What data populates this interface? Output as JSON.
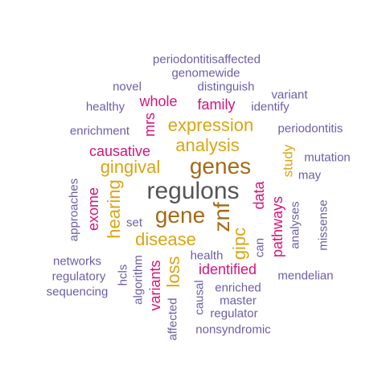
{
  "colors": {
    "purple": "#6b5fa6",
    "pink": "#d6157a",
    "gold": "#dba512",
    "brown": "#a56a16",
    "grey": "#555555"
  },
  "words": [
    {
      "text": "regulons",
      "color": "grey"
    },
    {
      "text": "genes",
      "color": "brown"
    },
    {
      "text": "gene",
      "color": "brown"
    },
    {
      "text": "znf",
      "color": "brown"
    },
    {
      "text": "expression",
      "color": "gold"
    },
    {
      "text": "analysis",
      "color": "gold"
    },
    {
      "text": "gingival",
      "color": "gold"
    },
    {
      "text": "disease",
      "color": "gold"
    },
    {
      "text": "hearing",
      "color": "gold"
    },
    {
      "text": "loss",
      "color": "gold"
    },
    {
      "text": "gipc",
      "color": "gold"
    },
    {
      "text": "study",
      "color": "gold"
    },
    {
      "text": "whole",
      "color": "pink"
    },
    {
      "text": "family",
      "color": "pink"
    },
    {
      "text": "mrs",
      "color": "pink"
    },
    {
      "text": "causative",
      "color": "pink"
    },
    {
      "text": "exome",
      "color": "pink"
    },
    {
      "text": "data",
      "color": "pink"
    },
    {
      "text": "pathways",
      "color": "pink"
    },
    {
      "text": "identified",
      "color": "pink"
    },
    {
      "text": "variants",
      "color": "pink"
    },
    {
      "text": "periodontitisaffected",
      "color": "purple"
    },
    {
      "text": "genomewide",
      "color": "purple"
    },
    {
      "text": "novel",
      "color": "purple"
    },
    {
      "text": "distinguish",
      "color": "purple"
    },
    {
      "text": "variant",
      "color": "purple"
    },
    {
      "text": "healthy",
      "color": "purple"
    },
    {
      "text": "identify",
      "color": "purple"
    },
    {
      "text": "enrichment",
      "color": "purple"
    },
    {
      "text": "periodontitis",
      "color": "purple"
    },
    {
      "text": "mutation",
      "color": "purple"
    },
    {
      "text": "may",
      "color": "purple"
    },
    {
      "text": "approaches",
      "color": "purple"
    },
    {
      "text": "set",
      "color": "purple"
    },
    {
      "text": "analyses",
      "color": "purple"
    },
    {
      "text": "missense",
      "color": "purple"
    },
    {
      "text": "networks",
      "color": "purple"
    },
    {
      "text": "hcls",
      "color": "purple"
    },
    {
      "text": "algorithm",
      "color": "purple"
    },
    {
      "text": "health",
      "color": "purple"
    },
    {
      "text": "can",
      "color": "purple"
    },
    {
      "text": "regulatory",
      "color": "purple"
    },
    {
      "text": "mendelian",
      "color": "purple"
    },
    {
      "text": "sequencing",
      "color": "purple"
    },
    {
      "text": "causal",
      "color": "purple"
    },
    {
      "text": "enriched",
      "color": "purple"
    },
    {
      "text": "master",
      "color": "purple"
    },
    {
      "text": "regulator",
      "color": "purple"
    },
    {
      "text": "affected",
      "color": "purple"
    },
    {
      "text": "nonsyndromic",
      "color": "purple"
    }
  ]
}
